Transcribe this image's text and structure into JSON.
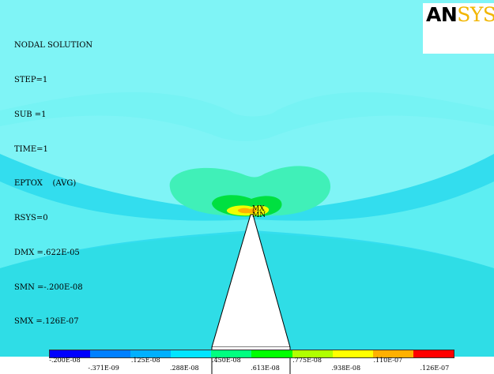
{
  "window": {
    "logo_an": "AN",
    "logo_sys": "SYS"
  },
  "info": [
    "NODAL SOLUTION",
    "STEP=1",
    "SUB =1",
    "TIME=1",
    "EPTOX    (AVG)",
    "RSYS=0",
    "DMX =.622E-05",
    "SMN =-.200E-08",
    "SMX =.126E-07"
  ],
  "markers": {
    "max": "MX",
    "min": "MN"
  },
  "colors": {
    "background": "#00e5ff",
    "field_light": "#80ffff",
    "field_mid": "#22e6e6",
    "band_green_light": "#00ff80",
    "band_green": "#00ff00",
    "band_yellow": "#ffff00",
    "band_orange": "#ffb000",
    "specimen": "#ffffff"
  },
  "legend": {
    "colors": [
      "#0000ff",
      "#0080ff",
      "#00b0ff",
      "#00e5ff",
      "#00ff80",
      "#00ff00",
      "#b0ff00",
      "#ffff00",
      "#ffb000",
      "#ff0000"
    ],
    "top_ticks": [
      ".200E-08",
      ".125E-08",
      ".450E-08",
      ".775E-08",
      ".110E-07"
    ],
    "bottom_ticks": [
      "-.371E-09",
      ".288E-08",
      ".613E-08",
      ".938E-08",
      ".126E-07"
    ],
    "top_prefix_first": "-"
  }
}
